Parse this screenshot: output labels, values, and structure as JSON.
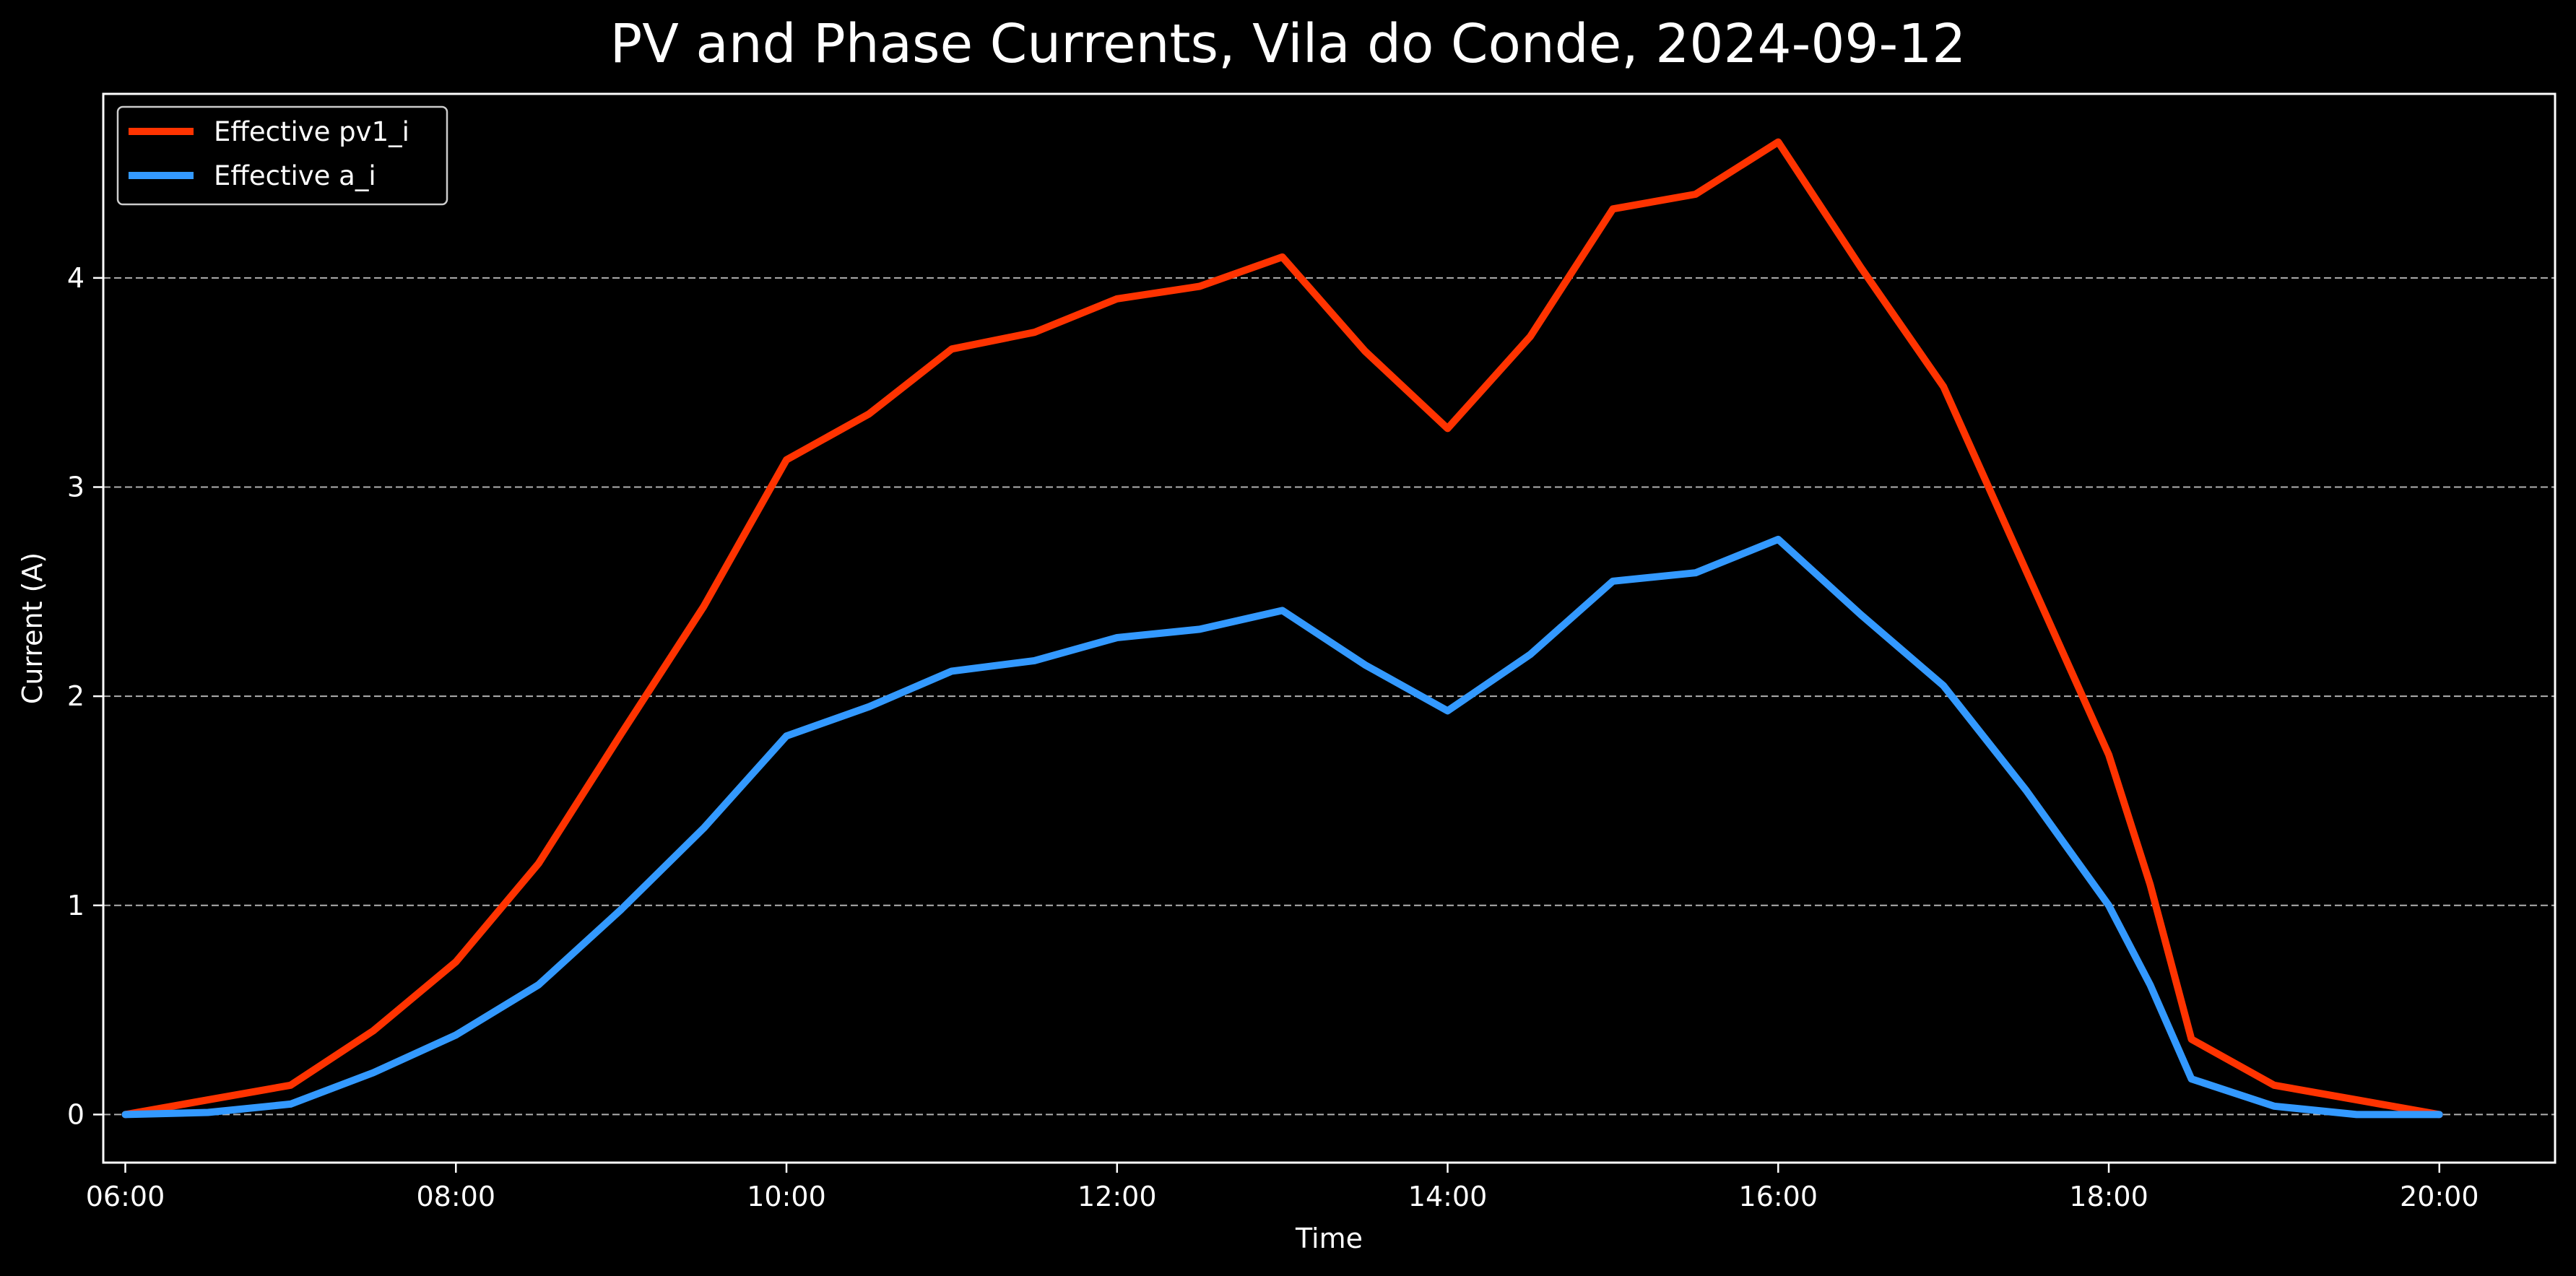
{
  "chart_data": {
    "type": "line",
    "title": "PV and Phase Currents, Vila do Conde, 2024-09-12",
    "xlabel": "Time",
    "ylabel": "Current (A)",
    "xlim": [
      "05:52",
      "20:42"
    ],
    "ylim": [
      -0.23,
      4.88
    ],
    "x_ticks": [
      "06:00",
      "08:00",
      "10:00",
      "12:00",
      "14:00",
      "16:00",
      "18:00",
      "20:00"
    ],
    "y_ticks": [
      0,
      1,
      2,
      3,
      4
    ],
    "grid": "horizontal dashed",
    "legend_position": "top-left",
    "background": "#000000",
    "x": [
      "06:00",
      "06:30",
      "07:00",
      "07:30",
      "08:00",
      "08:30",
      "09:00",
      "09:30",
      "10:00",
      "10:30",
      "11:00",
      "11:30",
      "12:00",
      "12:30",
      "13:00",
      "13:30",
      "14:00",
      "14:30",
      "15:00",
      "15:30",
      "16:00",
      "16:30",
      "17:00",
      "17:30",
      "18:00",
      "18:15",
      "18:30",
      "19:00",
      "19:30",
      "20:00"
    ],
    "series": [
      {
        "name": "Effective pv1_i",
        "color": "#ff3300",
        "values": [
          0.0,
          0.07,
          0.14,
          0.4,
          0.73,
          1.2,
          1.82,
          2.43,
          3.13,
          3.35,
          3.66,
          3.74,
          3.9,
          3.96,
          4.1,
          3.65,
          3.28,
          3.72,
          4.33,
          4.4,
          4.65,
          4.05,
          3.48,
          2.6,
          1.72,
          1.1,
          0.36,
          0.14,
          0.07,
          0.0
        ]
      },
      {
        "name": "Effective a_i",
        "color": "#3399ff",
        "values": [
          0.0,
          0.01,
          0.05,
          0.2,
          0.38,
          0.62,
          0.98,
          1.37,
          1.81,
          1.95,
          2.12,
          2.17,
          2.28,
          2.32,
          2.41,
          2.15,
          1.93,
          2.2,
          2.55,
          2.59,
          2.75,
          2.39,
          2.05,
          1.55,
          1.0,
          0.62,
          0.17,
          0.04,
          0.0,
          0.0
        ]
      }
    ]
  }
}
